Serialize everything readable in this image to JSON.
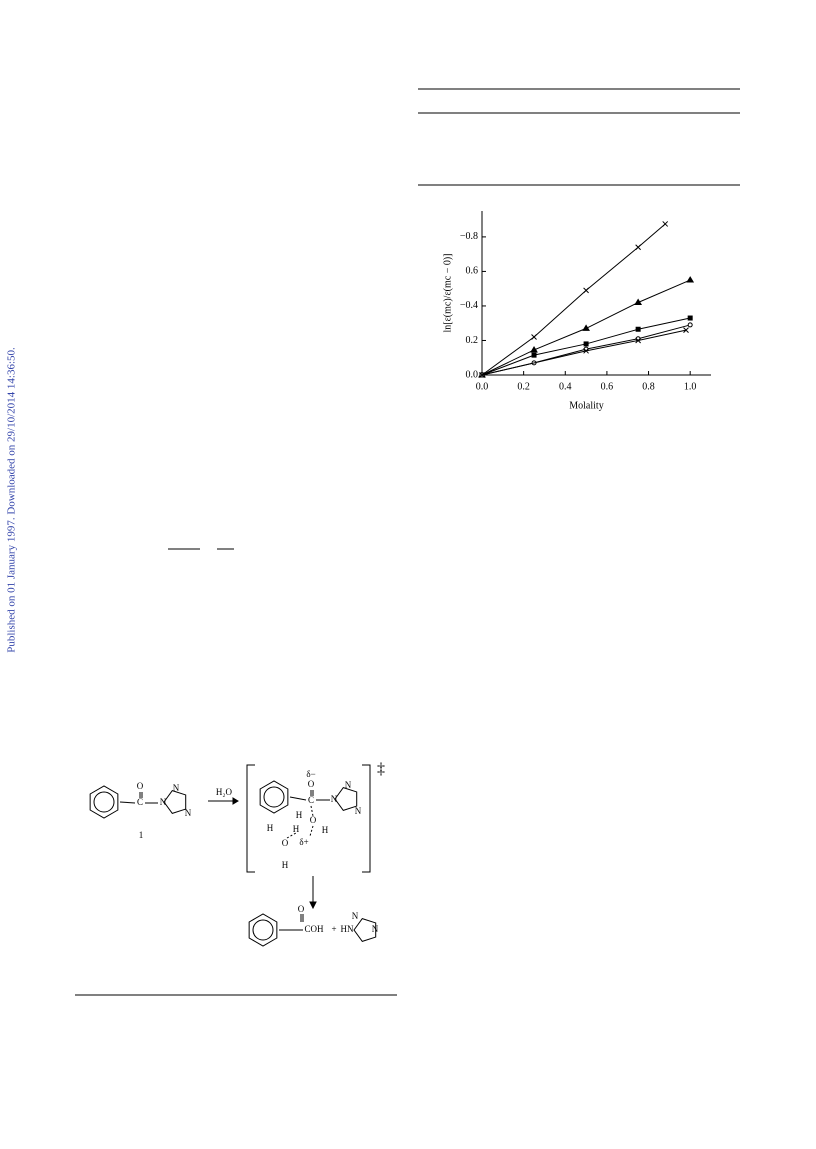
{
  "sidebar": "Published on 01 January 1997. Downloaded on 29/10/2014 14:36:50.",
  "chart_data": {
    "type": "line",
    "xlabel": "Molality",
    "ylabel": "ln[ε(mc)/ε(mc − 0)]",
    "xlim": [
      0,
      1.1
    ],
    "ylim": [
      0,
      0.95
    ],
    "xticks": [
      {
        "value": 0,
        "label": "0.0"
      },
      0.2,
      0.4,
      0.6,
      0.8,
      {
        "value": 1,
        "label": "1.0"
      }
    ],
    "yticks": [
      {
        "value": 0,
        "label": "0.0"
      },
      0.2,
      {
        "value": 0.4,
        "label": "−0.4"
      },
      0.6,
      {
        "value": 0.8,
        "label": "−0.8"
      }
    ],
    "series": [
      {
        "marker": "x",
        "color": "#000000",
        "x": [
          0,
          0.25,
          0.5,
          0.75,
          0.88
        ],
        "values": [
          0,
          0.22,
          0.49,
          0.74,
          0.875
        ]
      },
      {
        "marker": "triangle",
        "color": "#000000",
        "x": [
          0,
          0.25,
          0.5,
          0.75,
          1.0
        ],
        "values": [
          0,
          0.145,
          0.27,
          0.42,
          0.55
        ]
      },
      {
        "marker": "square",
        "color": "#000000",
        "x": [
          0,
          0.25,
          0.5,
          0.75,
          1.0
        ],
        "values": [
          0,
          0.115,
          0.18,
          0.265,
          0.33
        ]
      },
      {
        "marker": "circle",
        "color": "#000000",
        "x": [
          0,
          0.25,
          0.5,
          0.75,
          1.0
        ],
        "values": [
          0,
          0.07,
          0.15,
          0.21,
          0.29
        ]
      },
      {
        "marker": "x",
        "color": "#000000",
        "x": [
          0,
          0.5,
          0.75,
          0.98
        ],
        "values": [
          0,
          0.14,
          0.2,
          0.26
        ]
      }
    ]
  },
  "scheme": {
    "labels": [
      "1",
      "H₂O",
      "‡",
      "δ−",
      "δ+",
      "O",
      "C",
      "N",
      "N",
      "N",
      "O",
      "C",
      "N",
      "N",
      "N",
      "O",
      "H",
      "H",
      "H",
      "H",
      "O",
      "H",
      "O",
      "COH",
      "+",
      "HN",
      "N",
      "N"
    ]
  }
}
